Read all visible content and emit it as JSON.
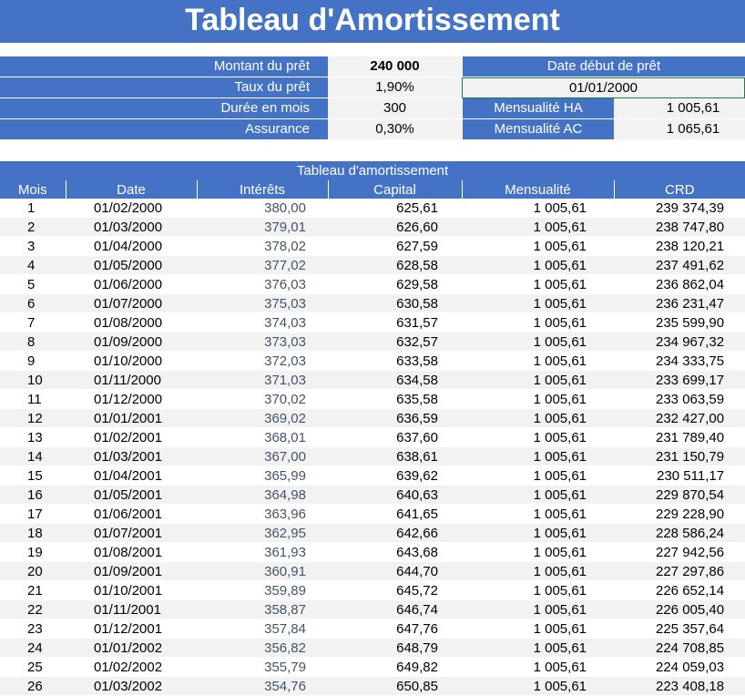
{
  "title": "Tableau d'Amortissement",
  "summary": {
    "montant_label": "Montant du prêt",
    "montant_value": "240 000",
    "taux_label": "Taux du prêt",
    "taux_value": "1,90%",
    "duree_label": "Durée en mois",
    "duree_value": "300",
    "assurance_label": "Assurance",
    "assurance_value": "0,30%",
    "date_debut_label": "Date début de prêt",
    "date_debut_value": "01/01/2000",
    "mensualite_ha_label": "Mensualité HA",
    "mensualite_ha_value": "1 005,61",
    "mensualite_ac_label": "Mensualité AC",
    "mensualite_ac_value": "1 065,61"
  },
  "table": {
    "caption": "Tableau d'amortissement",
    "columns": [
      "Mois",
      "Date",
      "Intérêts",
      "Capital",
      "Mensualité",
      "CRD"
    ],
    "rows": [
      [
        "1",
        "01/02/2000",
        "380,00",
        "625,61",
        "1 005,61",
        "239 374,39"
      ],
      [
        "2",
        "01/03/2000",
        "379,01",
        "626,60",
        "1 005,61",
        "238 747,80"
      ],
      [
        "3",
        "01/04/2000",
        "378,02",
        "627,59",
        "1 005,61",
        "238 120,21"
      ],
      [
        "4",
        "01/05/2000",
        "377,02",
        "628,58",
        "1 005,61",
        "237 491,62"
      ],
      [
        "5",
        "01/06/2000",
        "376,03",
        "629,58",
        "1 005,61",
        "236 862,04"
      ],
      [
        "6",
        "01/07/2000",
        "375,03",
        "630,58",
        "1 005,61",
        "236 231,47"
      ],
      [
        "7",
        "01/08/2000",
        "374,03",
        "631,57",
        "1 005,61",
        "235 599,90"
      ],
      [
        "8",
        "01/09/2000",
        "373,03",
        "632,57",
        "1 005,61",
        "234 967,32"
      ],
      [
        "9",
        "01/10/2000",
        "372,03",
        "633,58",
        "1 005,61",
        "234 333,75"
      ],
      [
        "10",
        "01/11/2000",
        "371,03",
        "634,58",
        "1 005,61",
        "233 699,17"
      ],
      [
        "11",
        "01/12/2000",
        "370,02",
        "635,58",
        "1 005,61",
        "233 063,59"
      ],
      [
        "12",
        "01/01/2001",
        "369,02",
        "636,59",
        "1 005,61",
        "232 427,00"
      ],
      [
        "13",
        "01/02/2001",
        "368,01",
        "637,60",
        "1 005,61",
        "231 789,40"
      ],
      [
        "14",
        "01/03/2001",
        "367,00",
        "638,61",
        "1 005,61",
        "231 150,79"
      ],
      [
        "15",
        "01/04/2001",
        "365,99",
        "639,62",
        "1 005,61",
        "230 511,17"
      ],
      [
        "16",
        "01/05/2001",
        "364,98",
        "640,63",
        "1 005,61",
        "229 870,54"
      ],
      [
        "17",
        "01/06/2001",
        "363,96",
        "641,65",
        "1 005,61",
        "229 228,90"
      ],
      [
        "18",
        "01/07/2001",
        "362,95",
        "642,66",
        "1 005,61",
        "228 586,24"
      ],
      [
        "19",
        "01/08/2001",
        "361,93",
        "643,68",
        "1 005,61",
        "227 942,56"
      ],
      [
        "20",
        "01/09/2001",
        "360,91",
        "644,70",
        "1 005,61",
        "227 297,86"
      ],
      [
        "21",
        "01/10/2001",
        "359,89",
        "645,72",
        "1 005,61",
        "226 652,14"
      ],
      [
        "22",
        "01/11/2001",
        "358,87",
        "646,74",
        "1 005,61",
        "226 005,40"
      ],
      [
        "23",
        "01/12/2001",
        "357,84",
        "647,76",
        "1 005,61",
        "225 357,64"
      ],
      [
        "24",
        "01/01/2002",
        "356,82",
        "648,79",
        "1 005,61",
        "224 708,85"
      ],
      [
        "25",
        "01/02/2002",
        "355,79",
        "649,82",
        "1 005,61",
        "224 059,03"
      ],
      [
        "26",
        "01/03/2002",
        "354,76",
        "650,85",
        "1 005,61",
        "223 408,18"
      ]
    ]
  },
  "colors": {
    "header_blue": "#4472c4",
    "row_stripe": "#f2f2f2",
    "interest_text": "#44546a",
    "selection_border": "#1e7a45"
  }
}
